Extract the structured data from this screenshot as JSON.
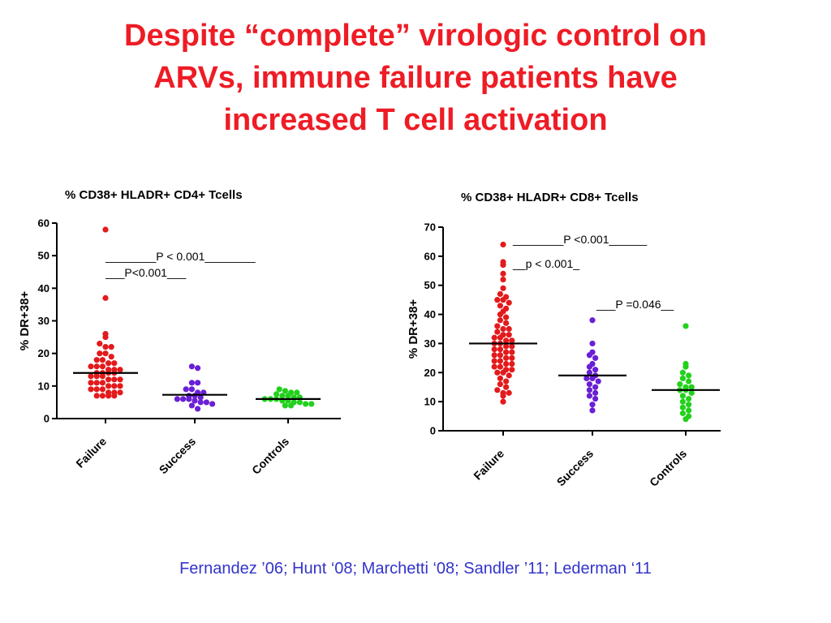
{
  "title": {
    "line1": "Despite “complete”  virologic control on",
    "line2": "ARVs, immune failure patients have",
    "line3": "increased T cell activation"
  },
  "citation": "Fernandez ’06; Hunt ‘08; Marchetti ‘08; Sandler ’11; Lederman ‘11",
  "colors": {
    "title": "#ee1c25",
    "citation": "#3333cc",
    "failure": "#e31a1c",
    "success": "#6a1fd6",
    "controls": "#22d11c",
    "median": "#000000"
  },
  "chart_data": [
    {
      "type": "scatter",
      "title": "% CD38+ HLADR+ CD4+ Tcells",
      "ylabel": "% DR+38+",
      "xlabel": "",
      "ylim": [
        0,
        60
      ],
      "yticks": [
        0,
        10,
        20,
        30,
        40,
        50,
        60
      ],
      "categories": [
        "Failure",
        "Success",
        "Controls"
      ],
      "series": [
        {
          "category": "Failure",
          "color": "#e31a1c",
          "median": 14,
          "values": [
            58,
            37,
            26,
            25,
            23,
            22,
            22,
            20,
            20,
            19,
            18,
            18,
            17,
            17,
            16,
            16,
            16,
            15,
            15,
            15,
            14,
            14,
            14,
            14,
            13,
            13,
            13,
            12,
            12,
            12,
            11,
            11,
            11,
            10,
            10,
            10,
            9,
            9,
            9,
            8,
            8,
            8,
            7,
            7,
            7,
            7
          ]
        },
        {
          "category": "Success",
          "color": "#6a1fd6",
          "median": 7.3,
          "values": [
            16,
            15.5,
            11,
            11,
            9,
            9,
            8,
            8,
            7,
            7,
            6.5,
            6,
            6,
            6,
            5.5,
            5,
            5,
            4.5,
            4,
            3
          ]
        },
        {
          "category": "Controls",
          "color": "#22d11c",
          "median": 6,
          "values": [
            9,
            8.5,
            8,
            8,
            7.5,
            7,
            7,
            6.5,
            6.5,
            6,
            6,
            6,
            5.5,
            5.5,
            5,
            5,
            4.5,
            4.5,
            4,
            4
          ]
        }
      ],
      "annotations": [
        {
          "text": "________P < 0.001________"
        },
        {
          "text": "___P<0.001___"
        }
      ]
    },
    {
      "type": "scatter",
      "title": "% CD38+ HLADR+ CD8+ Tcells",
      "ylabel": "% DR+38+",
      "xlabel": "",
      "ylim": [
        0,
        70
      ],
      "yticks": [
        0,
        10,
        20,
        30,
        40,
        50,
        60,
        70
      ],
      "categories": [
        "Failure",
        "Success",
        "Controls"
      ],
      "series": [
        {
          "category": "Failure",
          "color": "#e31a1c",
          "median": 30,
          "values": [
            64,
            58,
            57,
            54,
            52,
            49,
            47,
            46,
            45,
            45,
            44,
            43,
            42,
            41,
            40,
            39,
            38,
            37,
            36,
            35,
            35,
            34,
            33,
            33,
            32,
            32,
            31,
            31,
            30,
            30,
            29,
            29,
            28,
            28,
            27,
            27,
            26,
            26,
            25,
            25,
            24,
            24,
            23,
            23,
            22,
            22,
            21,
            21,
            20,
            20,
            19,
            18,
            17,
            16,
            15,
            14,
            13,
            13,
            12,
            10
          ]
        },
        {
          "category": "Success",
          "color": "#6a1fd6",
          "median": 19,
          "values": [
            38,
            30,
            27,
            26,
            25,
            23,
            22,
            21,
            20,
            19,
            18,
            18,
            17,
            16,
            15,
            14,
            13,
            12,
            11,
            9,
            7
          ]
        },
        {
          "category": "Controls",
          "color": "#22d11c",
          "median": 14,
          "values": [
            36,
            23,
            22,
            20,
            19,
            18,
            17,
            16,
            15,
            15,
            14,
            14,
            13,
            12,
            11,
            10,
            9,
            8,
            7,
            6,
            5,
            4
          ]
        }
      ],
      "annotations": [
        {
          "text": "________P <0.001______"
        },
        {
          "text": "__p < 0.001_"
        },
        {
          "text": "___P =0.046__"
        }
      ]
    }
  ]
}
